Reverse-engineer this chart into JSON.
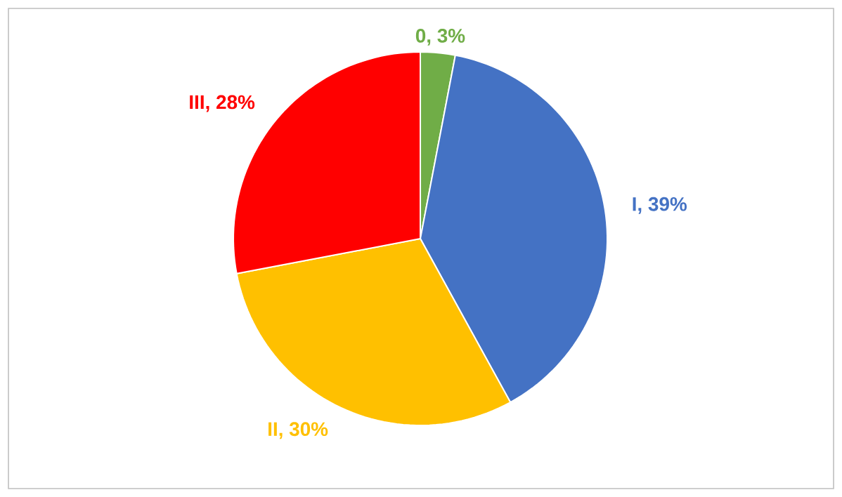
{
  "chart_data": {
    "type": "pie",
    "categories": [
      "0",
      "I",
      "II",
      "III"
    ],
    "values": [
      3,
      39,
      30,
      28
    ],
    "colors": [
      "#70ad47",
      "#4472c4",
      "#ffc000",
      "#ff0000"
    ],
    "value_labels": [
      ", 3%",
      ", 39%",
      ", 30%",
      ", 28%"
    ]
  }
}
